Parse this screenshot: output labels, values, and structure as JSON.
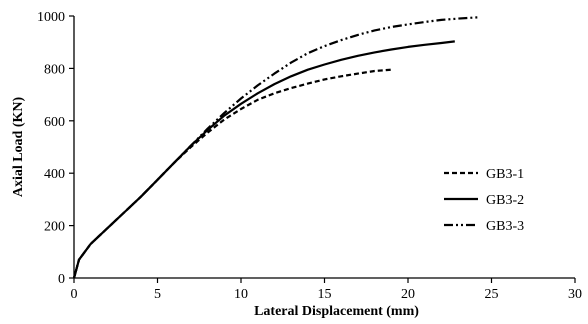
{
  "chart_data": {
    "type": "line",
    "xlabel": "Lateral Displacement (mm)",
    "ylabel": "Axial Load (KN)",
    "xlim": [
      0,
      30
    ],
    "ylim": [
      0,
      1000
    ],
    "xticks": [
      0,
      5,
      10,
      15,
      20,
      25,
      30
    ],
    "yticks": [
      0,
      200,
      400,
      600,
      800,
      1000
    ],
    "xtick_labels": [
      "0",
      "5",
      "10",
      "15",
      "20",
      "25",
      "30"
    ],
    "ytick_labels": [
      "0",
      "200",
      "400",
      "600",
      "800",
      "1000"
    ],
    "grid": false,
    "legend_position": "right",
    "series": [
      {
        "name": "GB3-1",
        "line_style": "dashed",
        "color": "#000000",
        "x": [
          0,
          0.3,
          1,
          2,
          3,
          4,
          5,
          6,
          7,
          8,
          9,
          10,
          11,
          12,
          13,
          14,
          15,
          16,
          17,
          18,
          19
        ],
        "y": [
          0,
          70,
          130,
          190,
          250,
          310,
          375,
          440,
          500,
          555,
          605,
          645,
          680,
          705,
          725,
          742,
          758,
          770,
          780,
          790,
          795
        ]
      },
      {
        "name": "GB3-2",
        "line_style": "solid",
        "color": "#000000",
        "x": [
          0,
          0.3,
          1,
          2,
          3,
          4,
          5,
          6,
          7,
          8,
          9,
          10,
          11,
          12,
          13,
          14,
          15,
          16,
          17,
          18,
          19,
          20,
          21,
          22,
          22.8
        ],
        "y": [
          0,
          70,
          130,
          190,
          250,
          310,
          375,
          440,
          505,
          565,
          620,
          665,
          705,
          740,
          770,
          795,
          815,
          833,
          848,
          861,
          872,
          882,
          890,
          897,
          903
        ]
      },
      {
        "name": "GB3-3",
        "line_style": "dash-dot-dot",
        "color": "#000000",
        "x": [
          0,
          0.3,
          1,
          2,
          3,
          4,
          5,
          6,
          7,
          8,
          9,
          10,
          11,
          12,
          13,
          14,
          15,
          16,
          17,
          18,
          19,
          20,
          21,
          22,
          23,
          24.2
        ],
        "y": [
          0,
          70,
          130,
          190,
          250,
          310,
          375,
          440,
          505,
          570,
          630,
          685,
          735,
          780,
          822,
          858,
          885,
          908,
          928,
          945,
          958,
          968,
          977,
          985,
          990,
          995
        ]
      }
    ]
  }
}
